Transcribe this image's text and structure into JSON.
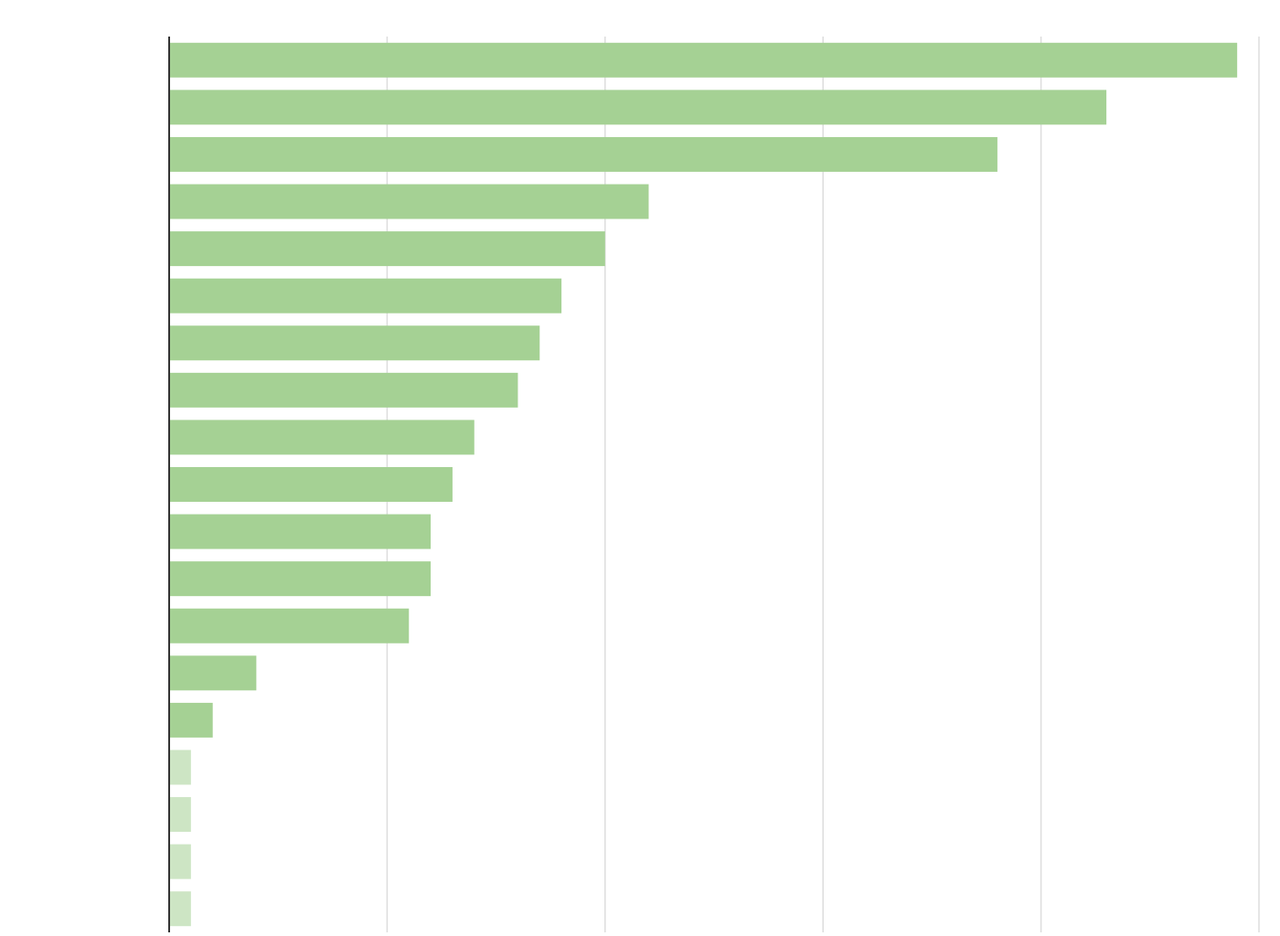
{
  "chart_data": {
    "type": "barh",
    "categories": [
      null,
      null,
      null,
      null,
      null,
      null,
      null,
      null,
      null,
      null,
      null,
      null,
      null,
      null,
      null,
      null,
      null,
      null,
      null
    ],
    "values": [
      4.9,
      4.3,
      3.8,
      2.2,
      2.0,
      1.8,
      1.7,
      1.6,
      1.4,
      1.3,
      1.2,
      1.2,
      1.1,
      0.4,
      0.2,
      0.1,
      0.1,
      0.1,
      0.1
    ],
    "colors": [
      "#a5d194",
      "#a5d194",
      "#a5d194",
      "#a5d194",
      "#a5d194",
      "#a5d194",
      "#a5d194",
      "#a5d194",
      "#a5d194",
      "#a5d194",
      "#a5d194",
      "#a5d194",
      "#a5d194",
      "#a5d194",
      "#a5d194",
      "#cde5c4",
      "#cde5c4",
      "#cde5c4",
      "#cde5c4"
    ],
    "xlim": [
      0,
      5
    ],
    "xticks": [
      0,
      1,
      2,
      3,
      4,
      5
    ],
    "grid": true
  }
}
